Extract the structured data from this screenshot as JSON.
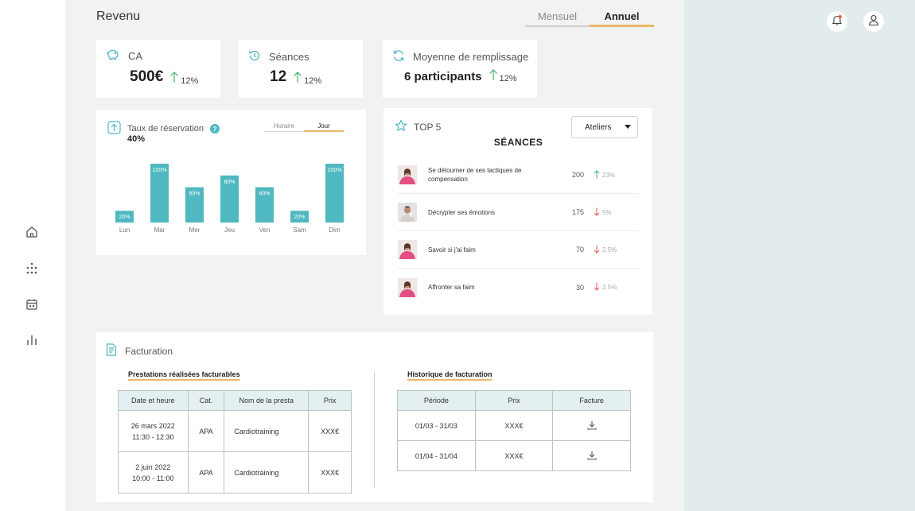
{
  "header": {
    "title": "Revenu"
  },
  "period_tabs": [
    {
      "label": "Mensuel",
      "active": false
    },
    {
      "label": "Annuel",
      "active": true
    }
  ],
  "kpis": [
    {
      "label": "CA",
      "value": "500€",
      "delta": "12%",
      "icon": "piggy-bank-icon",
      "trend": "up"
    },
    {
      "label": "Séances",
      "value": "12",
      "delta": "12%",
      "icon": "history-icon",
      "trend": "up"
    },
    {
      "label": "Moyenne de remplissage",
      "value": "6 participants",
      "delta": "12%",
      "icon": "refresh-icon",
      "trend": "up"
    }
  ],
  "reservation": {
    "title": "Taux de réservation",
    "help": "?",
    "rate": "40%",
    "tabs": [
      {
        "label": "Horaire",
        "active": false
      },
      {
        "label": "Jour",
        "active": true
      }
    ]
  },
  "chart_data": {
    "type": "bar",
    "categories": [
      "Lun",
      "Mar",
      "Mer",
      "Jeu",
      "Ven",
      "Sam",
      "Dim"
    ],
    "values": [
      20,
      100,
      60,
      80,
      60,
      20,
      100
    ],
    "value_labels": [
      "20%",
      "100%",
      "60%",
      "80%",
      "60%",
      "20%",
      "100%"
    ],
    "ylim": [
      0,
      100
    ],
    "color": "#4fb8c0",
    "grid": false
  },
  "top5": {
    "title": "TOP 5",
    "subtitle": "SÉANCES",
    "select": {
      "value": "Ateliers"
    },
    "sessions": [
      {
        "name": "Se détourner de ses tactiques de compensation",
        "count": "200",
        "delta": "23%",
        "trend": "up"
      },
      {
        "name": "Décrypter ses émotions",
        "count": "175",
        "delta": "5%",
        "trend": "down"
      },
      {
        "name": "Savoir si j'ai faim",
        "count": "70",
        "delta": "2.5%",
        "trend": "down"
      },
      {
        "name": "Affronter sa faim",
        "count": "30",
        "delta": "2.5%",
        "trend": "down"
      }
    ]
  },
  "billing": {
    "title": "Facturation",
    "left_title": "Prestations réalisées facturables",
    "right_title": "Historique de facturation",
    "left_headers": [
      "Date et heure",
      "Cat.",
      "Nom de la presta",
      "Prix"
    ],
    "left_rows": [
      {
        "date": "26 mars 2022",
        "time": "11:30 - 12:30",
        "cat": "APA",
        "name": "Cardiotraining",
        "price": "XXX€"
      },
      {
        "date": "2 juin 2022",
        "time": "10:00 - 11:00",
        "cat": "APA",
        "name": "Cardiotraining",
        "price": "XXX€"
      }
    ],
    "right_headers": [
      "Période",
      "Prix",
      "Facture"
    ],
    "right_rows": [
      {
        "period": "01/03 - 31/03",
        "price": "XXX€",
        "icon": "download-icon"
      },
      {
        "period": "01/04 - 31/04",
        "price": "XXX€",
        "icon": "download-icon"
      }
    ]
  },
  "colors": {
    "accent_teal": "#4fb8c0",
    "accent_gold": "#eab86a",
    "up_green": "#43b36a",
    "down_red": "#e4574f",
    "notification_dot": "#e85a3c",
    "content_bg": "#f2f2f2",
    "right_panel_bg": "#e3eced"
  }
}
